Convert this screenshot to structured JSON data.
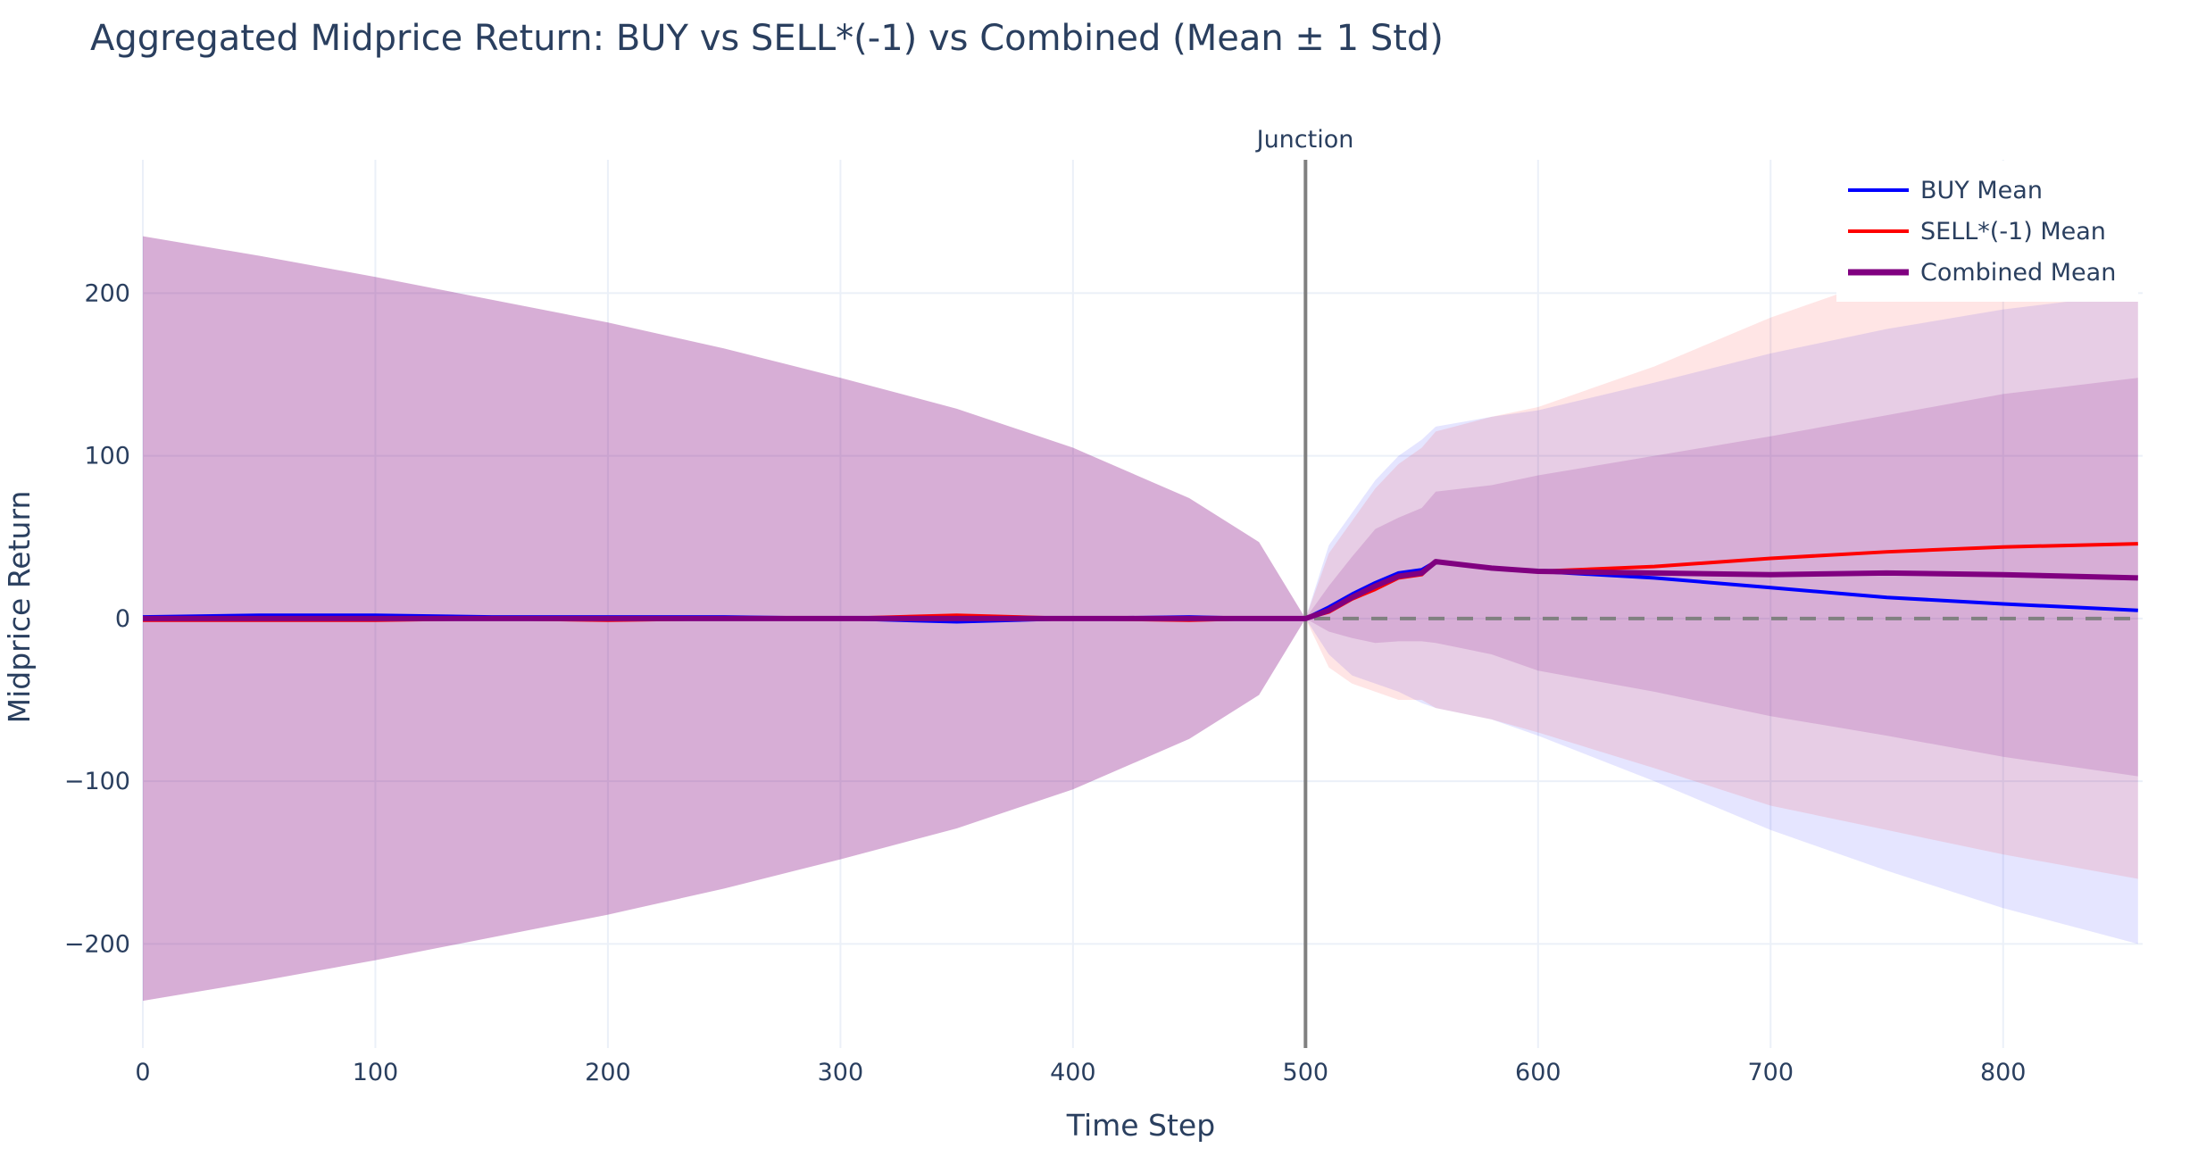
{
  "chart_data": {
    "type": "line",
    "title": "Aggregated Midprice Return: BUY vs SELL*(-1) vs Combined (Mean ± 1 Std)",
    "xlabel": "Time Step",
    "ylabel": "Midprice Return",
    "xlim": [
      0,
      860
    ],
    "ylim": [
      -264,
      282
    ],
    "xticks": [
      0,
      100,
      200,
      300,
      400,
      500,
      600,
      700,
      800
    ],
    "yticks": [
      -200,
      -100,
      0,
      100,
      200
    ],
    "ytick_labels": [
      "−200",
      "−100",
      "0",
      "100",
      "200"
    ],
    "grid": true,
    "legend_position": "top-right",
    "vline": {
      "x": 500,
      "label": "Junction",
      "color": "#808080"
    },
    "hline": {
      "y": 0,
      "style": "dashed",
      "color": "#808080"
    },
    "x": [
      0,
      50,
      100,
      150,
      200,
      250,
      300,
      350,
      400,
      450,
      480,
      500,
      510,
      520,
      530,
      540,
      550,
      556,
      580,
      600,
      650,
      700,
      750,
      800,
      858
    ],
    "series": [
      {
        "name": "BUY Mean",
        "color": "#0000ff",
        "band_color": "rgba(0,0,255,0.1)",
        "mean": [
          1,
          2,
          2,
          1,
          1,
          1,
          0,
          -2,
          0,
          1,
          0,
          0,
          7,
          15,
          22,
          28,
          30,
          35,
          31,
          29,
          25,
          19,
          13,
          9,
          5
        ],
        "upper": [
          235,
          223,
          210,
          196,
          182,
          166,
          148,
          129,
          105,
          74,
          47,
          0,
          45,
          65,
          85,
          100,
          110,
          118,
          124,
          128,
          145,
          163,
          178,
          190,
          200
        ],
        "lower": [
          -235,
          -223,
          -210,
          -196,
          -182,
          -166,
          -148,
          -129,
          -105,
          -74,
          -47,
          0,
          -22,
          -35,
          -40,
          -45,
          -52,
          -55,
          -62,
          -72,
          -100,
          -130,
          -155,
          -178,
          -200
        ]
      },
      {
        "name": "SELL*(-1) Mean",
        "color": "#ff0000",
        "band_color": "rgba(255,0,0,0.1)",
        "mean": [
          -1,
          -1,
          -1,
          0,
          -1,
          0,
          0,
          2,
          0,
          -1,
          0,
          0,
          4,
          12,
          18,
          25,
          27,
          35,
          31,
          29,
          32,
          37,
          41,
          44,
          46
        ],
        "upper": [
          235,
          223,
          210,
          196,
          182,
          166,
          148,
          129,
          105,
          74,
          47,
          0,
          40,
          60,
          80,
          95,
          105,
          115,
          124,
          130,
          155,
          185,
          210,
          225,
          240
        ],
        "lower": [
          -235,
          -223,
          -210,
          -196,
          -182,
          -166,
          -148,
          -129,
          -105,
          -74,
          -47,
          0,
          -30,
          -40,
          -45,
          -50,
          -50,
          -55,
          -62,
          -70,
          -92,
          -115,
          -130,
          -145,
          -160
        ]
      },
      {
        "name": "Combined Mean",
        "color": "#800080",
        "band_color": "rgba(128,0,128,0.15)",
        "mean": [
          0,
          0,
          0,
          0,
          0,
          0,
          0,
          0,
          0,
          0,
          0,
          0,
          5,
          13,
          20,
          26,
          28,
          35,
          31,
          29,
          28,
          27,
          28,
          27,
          25
        ],
        "upper": [
          235,
          223,
          210,
          196,
          182,
          166,
          148,
          129,
          105,
          74,
          47,
          0,
          20,
          38,
          55,
          62,
          68,
          78,
          82,
          88,
          100,
          112,
          125,
          138,
          148
        ],
        "lower": [
          -235,
          -223,
          -210,
          -196,
          -182,
          -166,
          -148,
          -129,
          -105,
          -74,
          -47,
          0,
          -8,
          -12,
          -15,
          -14,
          -14,
          -15,
          -22,
          -32,
          -45,
          -60,
          -72,
          -85,
          -97
        ]
      }
    ]
  }
}
